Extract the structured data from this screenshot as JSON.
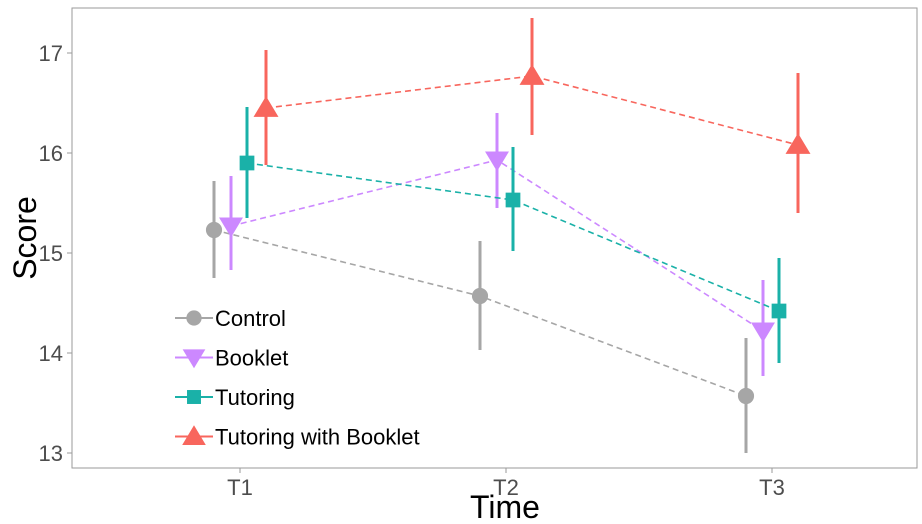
{
  "chart_data": {
    "type": "scatter",
    "xlabel": "Time",
    "ylabel": "Score",
    "categories": [
      "T1",
      "T2",
      "T3"
    ],
    "yticks": [
      13,
      14,
      15,
      16,
      17
    ],
    "ylim": [
      12.85,
      17.45
    ],
    "grid": false,
    "legend_position": "bottom-left",
    "series": [
      {
        "name": "Control",
        "color": "#a6a6a6",
        "marker": "circle",
        "values": [
          15.23,
          14.57,
          13.57
        ],
        "lower": [
          14.75,
          14.03,
          13.0
        ],
        "upper": [
          15.72,
          15.12,
          14.15
        ]
      },
      {
        "name": "Booklet",
        "color": "#cc88ff",
        "marker": "triangle-down",
        "values": [
          15.27,
          15.93,
          14.22
        ],
        "lower": [
          14.83,
          15.45,
          13.77
        ],
        "upper": [
          15.77,
          16.4,
          14.73
        ]
      },
      {
        "name": "Tutoring",
        "color": "#1ab1a8",
        "marker": "square",
        "values": [
          15.9,
          15.53,
          14.42
        ],
        "lower": [
          15.35,
          15.02,
          13.9
        ],
        "upper": [
          16.46,
          16.06,
          14.95
        ]
      },
      {
        "name": "Tutoring with Booklet",
        "color": "#f8665d",
        "marker": "triangle-up",
        "values": [
          16.45,
          16.77,
          16.08
        ],
        "lower": [
          15.88,
          16.18,
          15.4
        ],
        "upper": [
          17.03,
          17.35,
          16.8
        ]
      }
    ]
  }
}
